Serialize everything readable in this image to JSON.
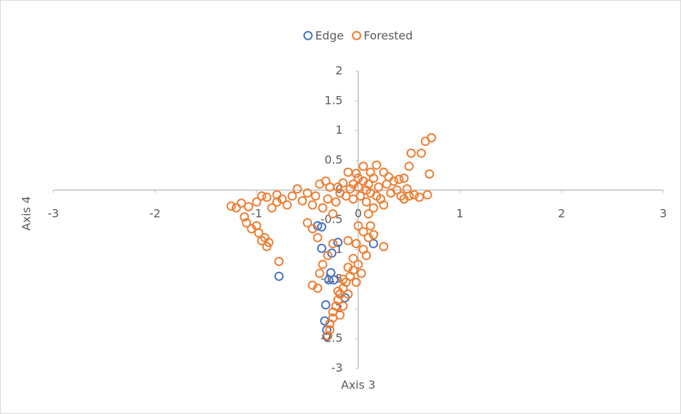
{
  "chart_data": {
    "type": "scatter",
    "x_label": "Axis 3",
    "y_label": "Axis 4",
    "xlim": [
      -3,
      3
    ],
    "ylim": [
      -3,
      2
    ],
    "xticks": [
      -3,
      -2,
      -1,
      0,
      1,
      2,
      3
    ],
    "yticks": [
      2,
      1.5,
      1,
      0.5,
      0,
      -0.5,
      -1,
      -1.5,
      -2,
      -2.5,
      -3
    ],
    "legend": "top",
    "series": [
      {
        "name": "Edge",
        "color": "#4472c4",
        "x": [
          -0.78,
          -0.36,
          -0.36,
          -0.32,
          -0.33,
          -0.31,
          -0.31,
          -0.27,
          -0.26,
          -0.24,
          -0.2,
          0.15,
          -0.13,
          -0.29,
          -0.4
        ],
        "values": [
          -1.45,
          -0.62,
          -0.98,
          -1.93,
          -2.2,
          -2.35,
          -2.46,
          -1.39,
          -1.06,
          -1.51,
          -0.88,
          -0.9,
          -1.81,
          -1.51,
          -0.6
        ]
      },
      {
        "name": "Forested",
        "color": "#ed7d31",
        "x": [
          -1.25,
          -1.2,
          -1.15,
          -1.12,
          -1.1,
          -1.05,
          -1.0,
          -0.98,
          -0.95,
          -0.92,
          -0.9,
          -0.88,
          -0.85,
          -0.8,
          -0.78,
          -1.08,
          -1.0,
          -0.95,
          -0.9,
          -0.8,
          -0.75,
          -0.7,
          -0.65,
          -0.6,
          -0.55,
          -0.5,
          -0.45,
          -0.42,
          -0.38,
          -0.35,
          -0.3,
          -0.28,
          -0.25,
          -0.22,
          -0.2,
          -0.18,
          -0.15,
          -0.12,
          -0.1,
          -0.08,
          -0.05,
          -0.02,
          -0.4,
          -0.5,
          -0.45,
          -0.32,
          0.0,
          0.02,
          0.05,
          0.08,
          0.1,
          0.12,
          0.15,
          0.18,
          0.2,
          0.22,
          0.25,
          0.28,
          0.3,
          0.32,
          0.35,
          0.38,
          0.4,
          0.42,
          0.45,
          0.15,
          0.25,
          0.1,
          0.05,
          0.0,
          -0.05,
          0.08,
          0.12,
          0.18,
          0.5,
          0.52,
          0.62,
          0.66,
          0.72,
          0.7,
          0.68,
          0.6,
          0.55,
          0.5,
          0.48,
          0.45,
          0.0,
          0.05,
          0.1,
          -0.02,
          0.05,
          0.08,
          -0.05,
          0.0,
          -0.05,
          -0.1,
          -0.08,
          -0.12,
          -0.15,
          -0.15,
          -0.18,
          -0.2,
          -0.2,
          -0.22,
          -0.25,
          -0.25,
          -0.28,
          -0.28,
          -0.3,
          -0.15,
          -0.18,
          0.03,
          -0.02,
          -0.1,
          0.25,
          -0.35,
          -0.38,
          -0.45,
          -0.4,
          -0.3,
          -0.25,
          0.12,
          0.15,
          -0.1
        ],
        "values": [
          -0.27,
          -0.3,
          -0.22,
          -0.45,
          -0.55,
          -0.65,
          -0.6,
          -0.72,
          -0.85,
          -0.8,
          -0.95,
          -0.88,
          -0.3,
          -0.2,
          -1.2,
          -0.28,
          -0.2,
          -0.1,
          -0.12,
          -0.08,
          -0.15,
          -0.25,
          -0.1,
          0.02,
          -0.18,
          -0.05,
          -0.25,
          -0.1,
          0.1,
          -0.3,
          -0.15,
          0.05,
          -0.4,
          -0.2,
          0.05,
          -0.05,
          0.12,
          -0.1,
          0.3,
          0.02,
          -0.15,
          0.28,
          -0.8,
          -0.55,
          -0.65,
          0.15,
          0.05,
          -0.1,
          0.15,
          -0.2,
          0.1,
          0.3,
          0.2,
          0.42,
          0.05,
          -0.15,
          0.3,
          0.1,
          0.22,
          -0.05,
          0.15,
          0.0,
          0.18,
          -0.1,
          -0.15,
          -0.3,
          -0.25,
          -0.4,
          0.4,
          0.2,
          0.1,
          0.0,
          -0.05,
          -0.1,
          0.4,
          0.62,
          0.62,
          0.82,
          0.88,
          0.27,
          -0.08,
          -0.12,
          -0.08,
          -0.1,
          0.02,
          0.2,
          -0.6,
          -0.7,
          -0.8,
          -0.9,
          -1.0,
          -1.1,
          -1.15,
          -1.25,
          -1.35,
          -1.3,
          -1.45,
          -1.55,
          -1.5,
          -1.65,
          -1.75,
          -1.7,
          -1.85,
          -1.95,
          -2.05,
          -2.15,
          -2.25,
          -2.35,
          -2.45,
          -1.95,
          -2.1,
          -1.4,
          -1.55,
          -1.75,
          -0.95,
          -1.25,
          -1.4,
          -1.6,
          -1.65,
          -1.1,
          -0.9,
          -0.6,
          -0.75,
          -0.85
        ]
      }
    ]
  }
}
